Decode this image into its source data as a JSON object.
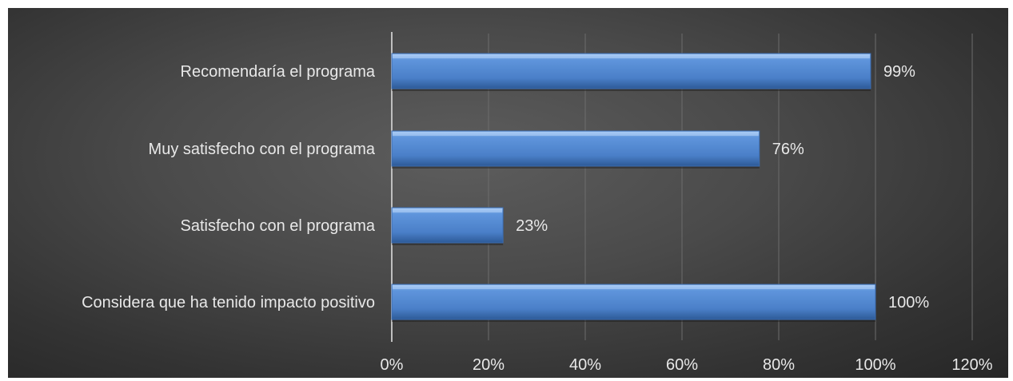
{
  "chart_data": {
    "type": "bar",
    "orientation": "horizontal",
    "categories": [
      "Recomendaría el programa",
      "Muy satisfecho con el programa",
      "Satisfecho con el programa",
      "Considera que ha tenido impacto positivo"
    ],
    "values": [
      99,
      76,
      23,
      100
    ],
    "data_labels": [
      "99%",
      "76%",
      "23%",
      "100%"
    ],
    "x_ticks": [
      "0%",
      "20%",
      "40%",
      "60%",
      "80%",
      "100%",
      "120%"
    ],
    "xlim": [
      0,
      120
    ],
    "grid": "vertical",
    "legend": "none",
    "title": "",
    "xlabel": "",
    "ylabel": ""
  },
  "colors": {
    "bar_top": "#8fb8ee",
    "bar_mid": "#4f86d0",
    "bar_bottom": "#2f5f9f",
    "text": "#e8e8e8",
    "grid": "#6c6c6c",
    "axis": "#bfbfbf"
  }
}
